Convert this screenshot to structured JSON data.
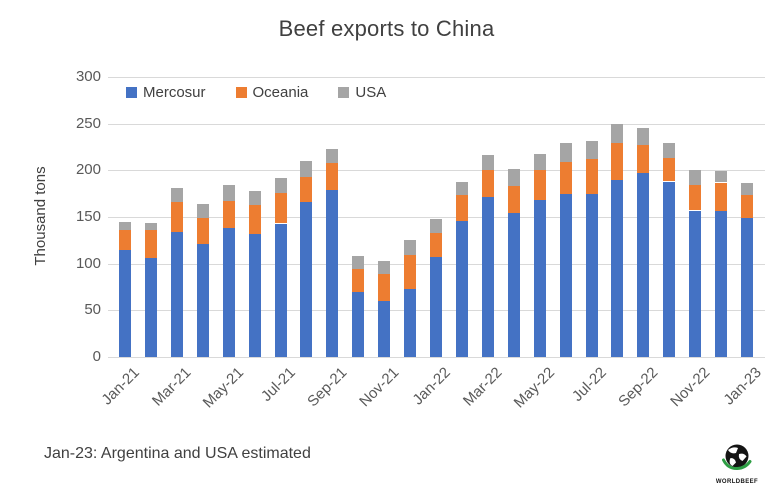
{
  "chart": {
    "title": "Beef exports to China",
    "ylabel": "Thousand tons",
    "footnote": "Jan-23: Argentina and USA estimated"
  },
  "logo": {
    "text": "WORLDBEEF"
  },
  "colors": {
    "mercosur": "#4472C4",
    "oceania": "#ED7D31",
    "usa": "#A5A5A5",
    "gridline": "#D9D9D9",
    "tick_text": "#595959",
    "title_text": "#404040"
  },
  "chart_data": {
    "type": "bar",
    "stacked": true,
    "title": "Beef exports to China",
    "xlabel": "",
    "ylabel": "Thousand tons",
    "ylim": [
      0,
      300
    ],
    "yticks": [
      0,
      50,
      100,
      150,
      200,
      250,
      300
    ],
    "grid": true,
    "legend_position": "top-left-inside",
    "annotation": "Jan-23: Argentina and USA estimated",
    "categories": [
      "Jan-21",
      "Feb-21",
      "Mar-21",
      "Apr-21",
      "May-21",
      "Jun-21",
      "Jul-21",
      "Aug-21",
      "Sep-21",
      "Oct-21",
      "Nov-21",
      "Dec-21",
      "Jan-22",
      "Feb-22",
      "Mar-22",
      "Apr-22",
      "May-22",
      "Jun-22",
      "Jul-22",
      "Aug-22",
      "Sep-22",
      "Oct-22",
      "Nov-22",
      "Dec-22",
      "Jan-23"
    ],
    "xticks_shown": [
      "Jan-21",
      "Mar-21",
      "May-21",
      "Jul-21",
      "Sep-21",
      "Nov-21",
      "Jan-22",
      "Mar-22",
      "May-22",
      "Jul-22",
      "Sep-22",
      "Nov-22",
      "Jan-23"
    ],
    "series": [
      {
        "name": "Mercosur",
        "color": "#4472C4",
        "values": [
          115,
          106,
          134,
          121,
          138,
          132,
          143,
          166,
          179,
          70,
          60,
          73,
          107,
          146,
          171,
          154,
          168,
          175,
          175,
          190,
          197,
          188,
          157,
          157,
          149
        ]
      },
      {
        "name": "Oceania",
        "color": "#ED7D31",
        "values": [
          21,
          30,
          32,
          28,
          29,
          31,
          33,
          27,
          29,
          24,
          29,
          36,
          26,
          28,
          29,
          29,
          32,
          34,
          37,
          39,
          30,
          25,
          27,
          30,
          25
        ]
      },
      {
        "name": "USA",
        "color": "#A5A5A5",
        "values": [
          9,
          8,
          15,
          15,
          17,
          15,
          16,
          17,
          15,
          14,
          14,
          16,
          15,
          14,
          17,
          18,
          18,
          20,
          19,
          21,
          18,
          16,
          16,
          12,
          13
        ]
      }
    ]
  }
}
